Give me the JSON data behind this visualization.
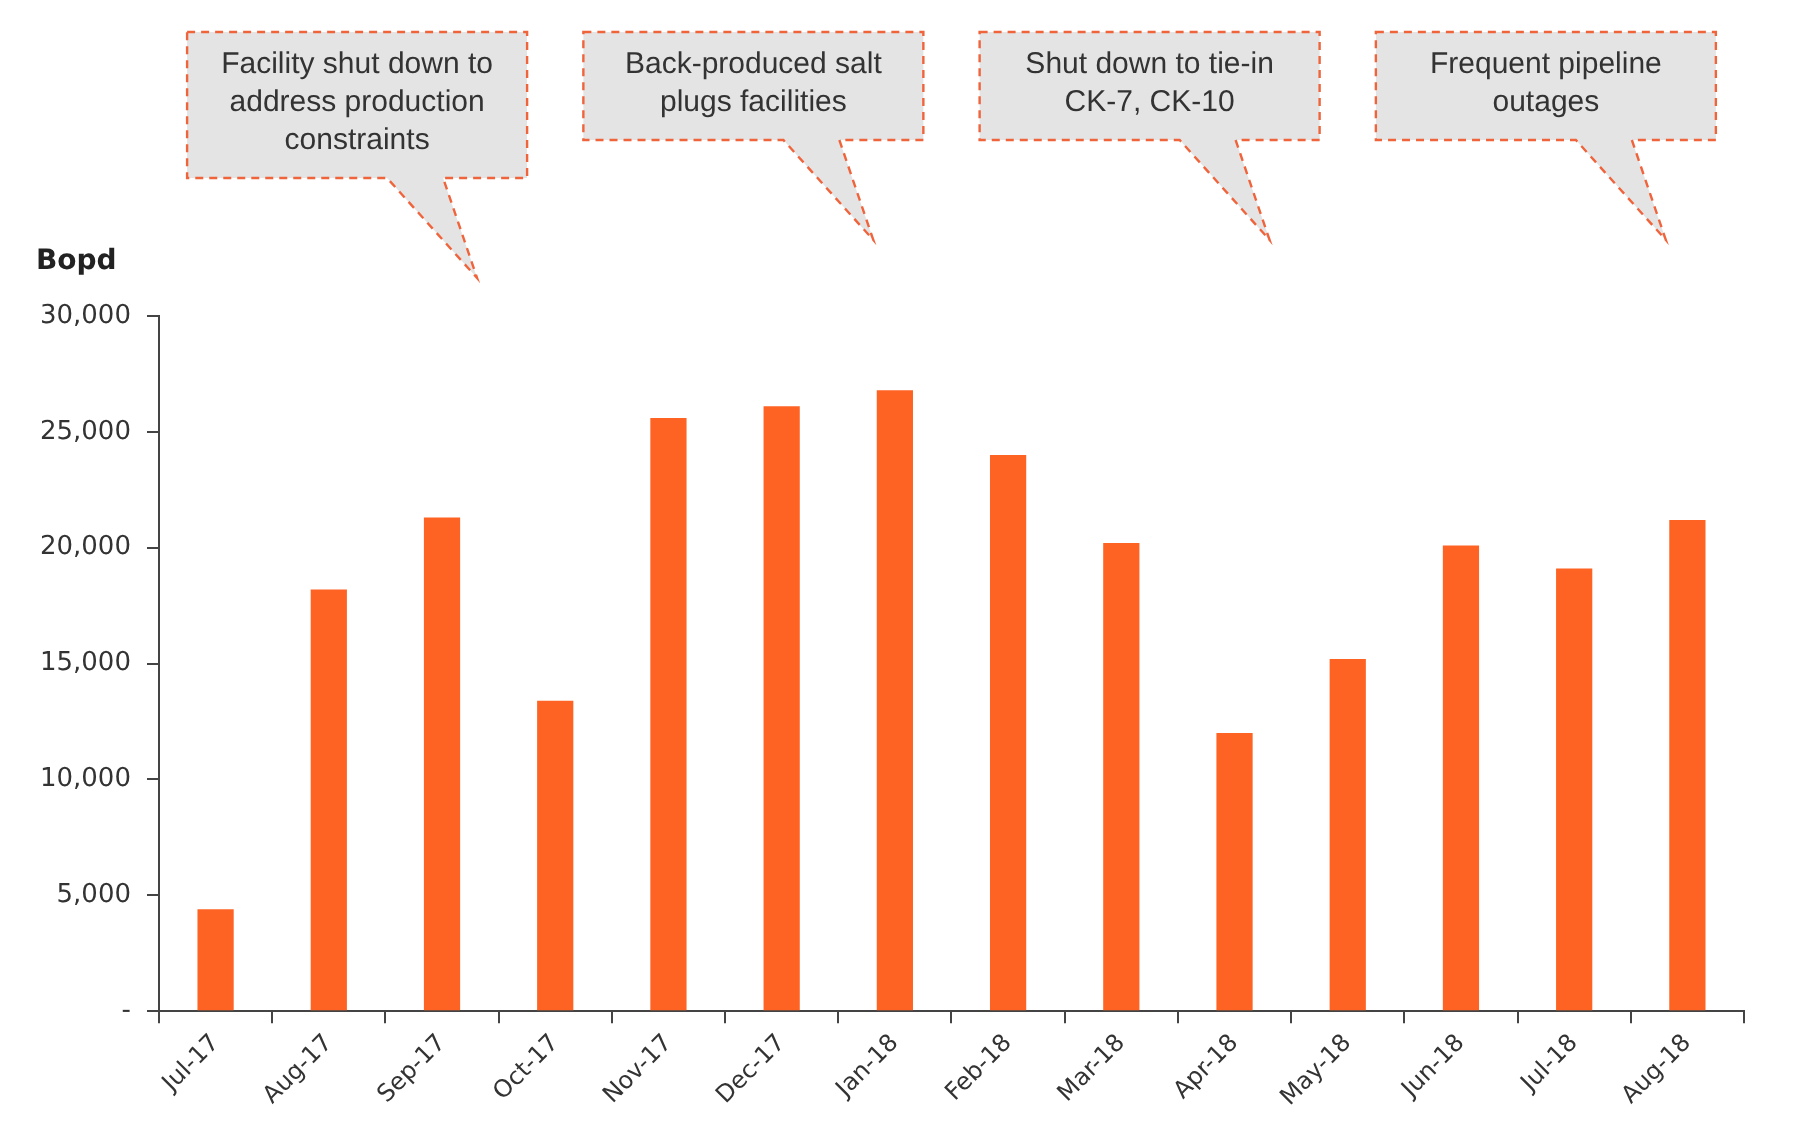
{
  "chart_data": {
    "type": "bar",
    "ylabel": "Bopd",
    "categories": [
      "Jul-17",
      "Aug-17",
      "Sep-17",
      "Oct-17",
      "Nov-17",
      "Dec-17",
      "Jan-18",
      "Feb-18",
      "Mar-18",
      "Apr-18",
      "May-18",
      "Jun-18",
      "Jul-18",
      "Aug-18"
    ],
    "values": [
      4400,
      18200,
      21300,
      13400,
      25600,
      26100,
      26800,
      24000,
      20200,
      12000,
      15200,
      20100,
      19100,
      21200
    ],
    "color": "#fe6324",
    "ylim": [
      0,
      30000
    ],
    "yticks": [
      {
        "value": 0,
        "label": "-"
      },
      {
        "value": 5000,
        "label": "5,000"
      },
      {
        "value": 10000,
        "label": "10,000"
      },
      {
        "value": 15000,
        "label": "15,000"
      },
      {
        "value": 20000,
        "label": "20,000"
      },
      {
        "value": 25000,
        "label": "25,000"
      },
      {
        "value": 30000,
        "label": "30,000"
      }
    ],
    "annotations": [
      "Facility shut down to address production constraints",
      "Back-produced salt plugs facilities",
      "Shut down to tie-in CK-7, CK-10",
      "Frequent pipeline outages"
    ]
  }
}
